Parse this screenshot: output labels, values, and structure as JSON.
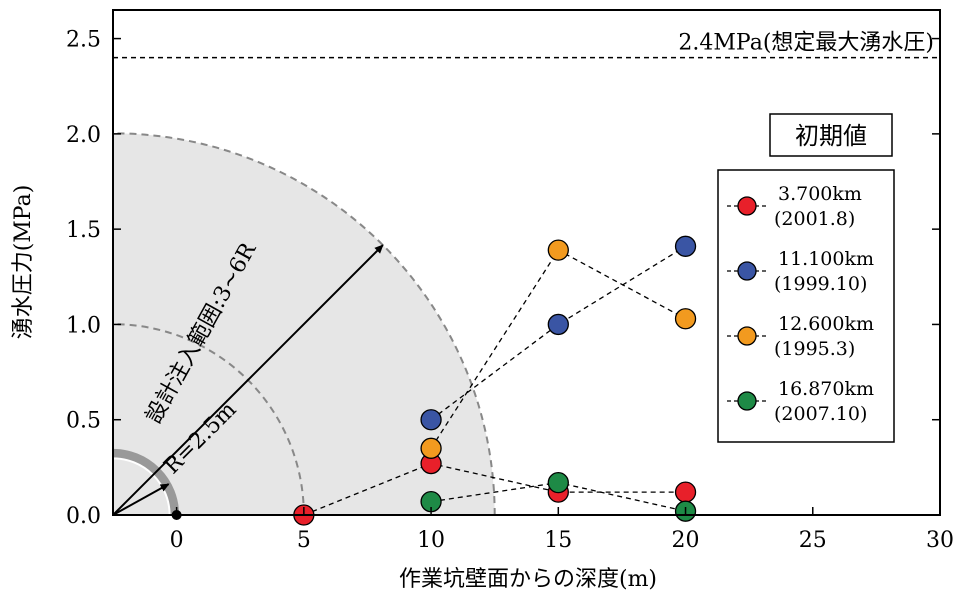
{
  "chart_data": {
    "type": "scatter",
    "title": "",
    "xlabel": "作業坑壁面からの深度(m)",
    "ylabel": "湧水圧力(MPa)",
    "xlim": [
      -2.5,
      30
    ],
    "ylim": [
      0,
      2.65
    ],
    "xticks": [
      0,
      5,
      10,
      15,
      20,
      25,
      30
    ],
    "yticks": [
      0.0,
      0.5,
      1.0,
      1.5,
      2.0,
      2.5
    ],
    "xtick_labels": [
      "0",
      "5",
      "10",
      "15",
      "20",
      "25",
      "30"
    ],
    "ytick_labels": [
      "0.0",
      "0.5",
      "1.0",
      "1.5",
      "2.0",
      "2.5"
    ],
    "grid": false,
    "reference_line": {
      "y": 2.4,
      "style": "dashed",
      "label": "2.4MPa(想定最大湧水圧)"
    },
    "legend": {
      "title": "初期値",
      "placement": "right",
      "entries": [
        {
          "line1": "3.700km",
          "line2": "(2001.8)"
        },
        {
          "line1": "11.100km",
          "line2": "(1999.10)"
        },
        {
          "line1": "12.600km",
          "line2": "(1995.3)"
        },
        {
          "line1": "16.870km",
          "line2": "(2007.10)"
        }
      ]
    },
    "series": [
      {
        "name": "3.700km",
        "color": "#e8202a",
        "x": [
          5,
          10,
          15,
          20
        ],
        "y": [
          0.0,
          0.27,
          0.12,
          0.12
        ]
      },
      {
        "name": "11.100km",
        "color": "#3a55a4",
        "x": [
          10,
          15,
          20
        ],
        "y": [
          0.5,
          1.0,
          1.41
        ]
      },
      {
        "name": "12.600km",
        "color": "#f29a1f",
        "x": [
          10,
          15,
          20
        ],
        "y": [
          0.35,
          1.39,
          1.03
        ]
      },
      {
        "name": "16.870km",
        "color": "#1e8a46",
        "x": [
          10,
          15,
          20
        ],
        "y": [
          0.07,
          0.17,
          0.02
        ]
      }
    ],
    "annotations": {
      "radius_label": "R=2.5m",
      "injection_label": "設計注入範囲:3~6R",
      "tunnel_radius_m": 2.5,
      "zone_inner_radius_m": 7.5,
      "zone_outer_radius_m": 15
    }
  }
}
